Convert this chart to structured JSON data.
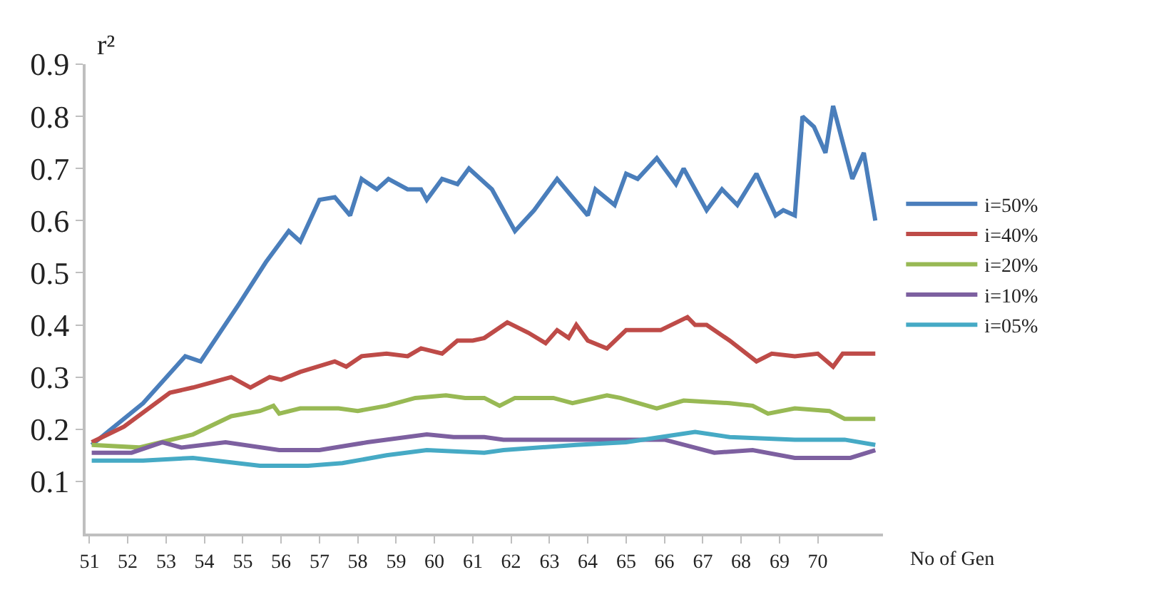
{
  "chart_data": {
    "type": "line",
    "xlabel": "No of Gen",
    "ylabel": "r²",
    "xlim": [
      50.9,
      71.7
    ],
    "xticks": [
      51,
      52,
      53,
      54,
      55,
      56,
      57,
      58,
      59,
      60,
      61,
      62,
      63,
      64,
      65,
      66,
      67,
      68,
      69,
      70
    ],
    "ylim": [
      0,
      0.9
    ],
    "yticks": [
      0.1,
      0.2,
      0.3,
      0.4,
      0.5,
      0.6,
      0.7,
      0.8,
      0.9
    ],
    "legend": "right",
    "marker": "none",
    "line_style": "solid",
    "series": [
      {
        "name": "i=50%",
        "color": "#4a7ebb",
        "x": [
          51.06,
          52.4,
          53.5,
          53.9,
          54.9,
          55.6,
          56.2,
          56.5,
          57.0,
          57.4,
          57.8,
          58.1,
          58.5,
          58.8,
          59.3,
          59.65,
          59.8,
          60.2,
          60.6,
          60.9,
          61.5,
          62.1,
          62.6,
          63.2,
          64.0,
          64.2,
          64.7,
          65.0,
          65.3,
          65.8,
          66.3,
          66.5,
          67.1,
          67.5,
          67.9,
          68.4,
          68.9,
          69.1,
          69.4,
          69.6,
          69.9,
          70.2,
          70.4,
          70.9,
          71.2,
          71.5
        ],
        "values": [
          0.17,
          0.25,
          0.34,
          0.33,
          0.44,
          0.52,
          0.58,
          0.56,
          0.64,
          0.645,
          0.61,
          0.68,
          0.66,
          0.68,
          0.66,
          0.66,
          0.64,
          0.68,
          0.67,
          0.7,
          0.66,
          0.58,
          0.62,
          0.68,
          0.61,
          0.66,
          0.63,
          0.69,
          0.68,
          0.72,
          0.67,
          0.7,
          0.62,
          0.66,
          0.63,
          0.69,
          0.61,
          0.62,
          0.61,
          0.8,
          0.78,
          0.73,
          0.82,
          0.68,
          0.73,
          0.6
        ]
      },
      {
        "name": "i=40%",
        "color": "#be4b48",
        "x": [
          51.06,
          51.9,
          53.1,
          53.7,
          54.7,
          55.2,
          55.7,
          56.0,
          56.5,
          57.4,
          57.7,
          58.1,
          58.75,
          59.3,
          59.65,
          60.2,
          60.6,
          61.0,
          61.3,
          61.9,
          62.45,
          62.9,
          63.2,
          63.5,
          63.7,
          64.0,
          64.5,
          65.0,
          65.9,
          66.6,
          66.8,
          67.1,
          67.7,
          68.4,
          68.8,
          69.4,
          70.0,
          70.4,
          70.65,
          71.5
        ],
        "values": [
          0.175,
          0.205,
          0.27,
          0.28,
          0.3,
          0.28,
          0.3,
          0.295,
          0.31,
          0.33,
          0.32,
          0.34,
          0.345,
          0.34,
          0.355,
          0.345,
          0.37,
          0.37,
          0.375,
          0.405,
          0.385,
          0.365,
          0.39,
          0.375,
          0.4,
          0.37,
          0.355,
          0.39,
          0.39,
          0.415,
          0.4,
          0.4,
          0.37,
          0.33,
          0.345,
          0.34,
          0.345,
          0.32,
          0.345,
          0.345
        ]
      },
      {
        "name": "i=20%",
        "color": "#98b954",
        "x": [
          51.06,
          52.3,
          53.7,
          54.7,
          55.45,
          55.8,
          55.95,
          56.5,
          57.5,
          58.0,
          58.75,
          59.5,
          60.3,
          60.8,
          61.3,
          61.7,
          62.1,
          63.1,
          63.6,
          64.5,
          64.85,
          65.8,
          66.5,
          67.7,
          68.3,
          68.7,
          69.4,
          70.3,
          70.7,
          71.5
        ],
        "values": [
          0.17,
          0.165,
          0.19,
          0.225,
          0.235,
          0.245,
          0.23,
          0.24,
          0.24,
          0.235,
          0.245,
          0.26,
          0.265,
          0.26,
          0.26,
          0.245,
          0.26,
          0.26,
          0.25,
          0.265,
          0.26,
          0.24,
          0.255,
          0.25,
          0.245,
          0.23,
          0.24,
          0.235,
          0.22,
          0.22
        ]
      },
      {
        "name": "i=10%",
        "color": "#7d60a0",
        "x": [
          51.06,
          52.1,
          52.9,
          53.4,
          54.55,
          55.95,
          57.0,
          58.25,
          59.8,
          60.5,
          61.3,
          61.8,
          64.4,
          66.0,
          67.3,
          68.3,
          69.4,
          70.85,
          71.5
        ],
        "values": [
          0.155,
          0.155,
          0.175,
          0.165,
          0.175,
          0.16,
          0.16,
          0.175,
          0.19,
          0.185,
          0.185,
          0.18,
          0.18,
          0.18,
          0.155,
          0.16,
          0.145,
          0.145,
          0.16
        ]
      },
      {
        "name": "i=05%",
        "color": "#46aac5",
        "x": [
          51.06,
          52.4,
          53.7,
          55.45,
          56.7,
          57.6,
          58.75,
          59.8,
          61.3,
          61.8,
          63.7,
          65.0,
          66.8,
          67.7,
          69.4,
          70.7,
          71.5
        ],
        "values": [
          0.14,
          0.14,
          0.145,
          0.13,
          0.13,
          0.135,
          0.15,
          0.16,
          0.155,
          0.16,
          0.17,
          0.175,
          0.195,
          0.185,
          0.18,
          0.18,
          0.17
        ]
      }
    ]
  }
}
